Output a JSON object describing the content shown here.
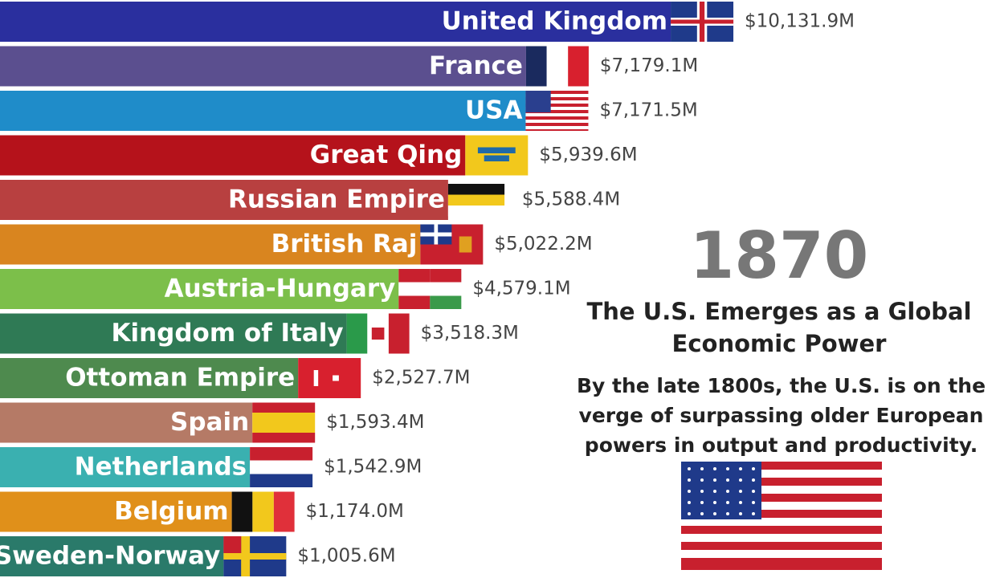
{
  "chart_data": {
    "type": "bar",
    "orientation": "horizontal",
    "categories": [
      "United Kingdom",
      "France",
      "USA",
      "Great Qing",
      "Russian Empire",
      "British Raj",
      "Austria-Hungary",
      "Kingdom of Italy",
      "Ottoman Empire",
      "Spain",
      "Netherlands",
      "Belgium",
      "Sweden-Norway"
    ],
    "values": [
      10131.9,
      7179.1,
      7171.5,
      5939.6,
      5588.4,
      5022.2,
      4579.1,
      3518.3,
      2527.7,
      1593.4,
      1542.9,
      1174.0,
      1005.6
    ],
    "value_labels": [
      "$10,131.9M",
      "$7,179.1M",
      "$7,171.5M",
      "$5,939.6M",
      "$5,588.4M",
      "$5,022.2M",
      "$4,579.1M",
      "$3,518.3M",
      "$2,527.7M",
      "$1,593.4M",
      "$1,542.9M",
      "$1,174.0M",
      "$1,005.6M"
    ],
    "colors": [
      "#2a2f9e",
      "#5b4f8f",
      "#1f8cc9",
      "#b5121b",
      "#b84040",
      "#d9851f",
      "#7cbf4a",
      "#2f7a55",
      "#4e8a4e",
      "#b57a66",
      "#3ab0b0",
      "#e0901a",
      "#2a7a6a"
    ],
    "annotation": {
      "year": "1870",
      "headline": "The U.S. Emerges as a Global Economic Power",
      "text": "By the late 1800s, the U.S. is on the verge of surpassing older European powers in output and productivity."
    }
  }
}
